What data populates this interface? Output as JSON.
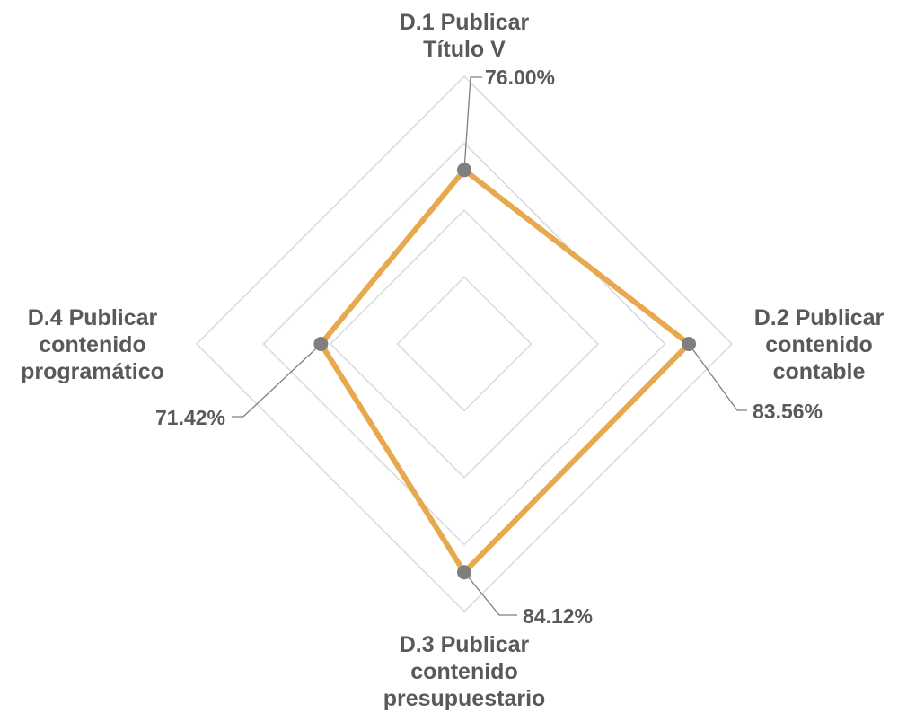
{
  "chart_data": {
    "type": "radar",
    "axes": [
      {
        "label_lines": [
          "D.1 Publicar",
          "Título V"
        ],
        "value": 76.0,
        "value_label": "76.00%"
      },
      {
        "label_lines": [
          "D.2 Publicar",
          "contenido",
          "contable"
        ],
        "value": 83.56,
        "value_label": "83.56%"
      },
      {
        "label_lines": [
          "D.3 Publicar",
          "contenido",
          "presupuestario"
        ],
        "value": 84.12,
        "value_label": "84.12%"
      },
      {
        "label_lines": [
          "D.4 Publicar",
          "contenido",
          "programático"
        ],
        "value": 71.42,
        "value_label": "71.42%"
      }
    ],
    "r_range": [
      50,
      90
    ],
    "grid_rings": 4,
    "grid": true,
    "legend": "none",
    "colors": {
      "series": "#e8a84d",
      "marker": "#7f7f7f",
      "grid": "#d9d9d9",
      "text": "#595959",
      "leader": "#7f7f7f"
    }
  }
}
